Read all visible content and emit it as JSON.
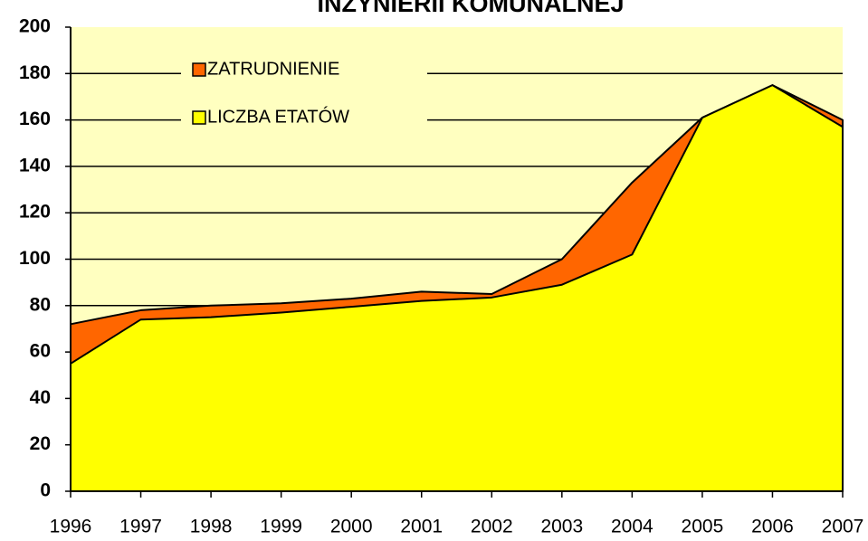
{
  "chart_data": {
    "type": "area",
    "title": "INŻYNIERII KOMUNALNEJ",
    "categories": [
      "1996",
      "1997",
      "1998",
      "1999",
      "2000",
      "2001",
      "2002",
      "2003",
      "2004",
      "2005",
      "2006",
      "2007"
    ],
    "series": [
      {
        "name": "ZATRUDNIENIE",
        "color": "#ff6600",
        "values": [
          72,
          78,
          80,
          81,
          83,
          86,
          85,
          100,
          133,
          161,
          175,
          160
        ]
      },
      {
        "name": "LICZBA ETATÓW",
        "color": "#ffff00",
        "values": [
          55,
          74,
          75,
          77,
          79.5,
          82,
          83.5,
          89,
          102,
          161,
          175,
          157
        ]
      }
    ],
    "ylim": [
      0,
      200
    ],
    "yticks": [
      0,
      20,
      40,
      60,
      80,
      100,
      120,
      140,
      160,
      180,
      200
    ],
    "grid": true,
    "legend": "top-left"
  }
}
